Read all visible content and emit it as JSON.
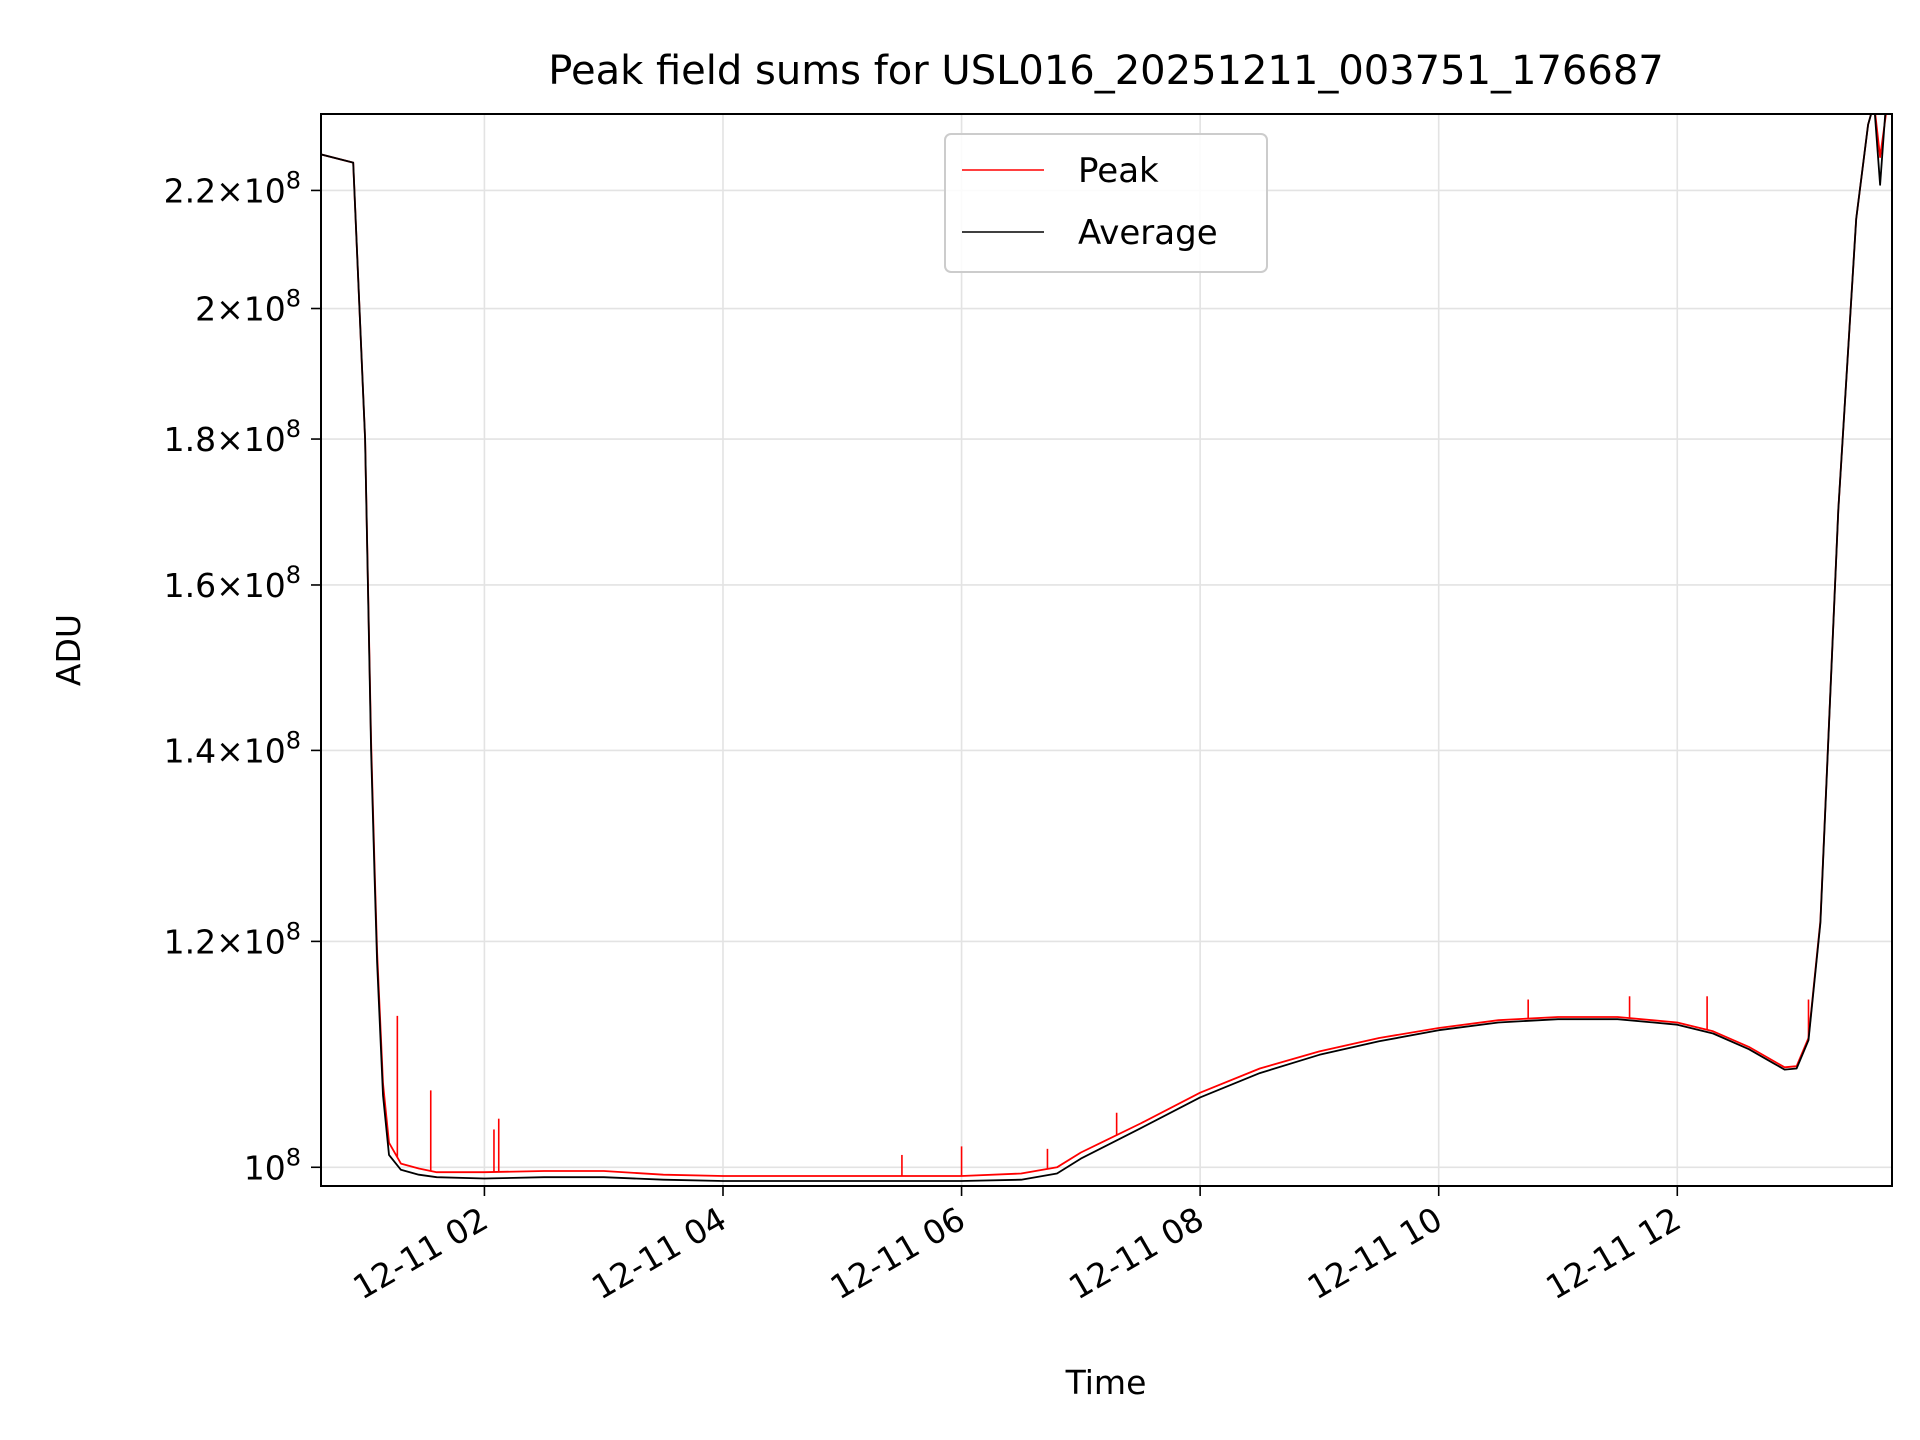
{
  "chart_data": {
    "type": "line",
    "title": "Peak field sums for USL016_20251211_003751_176687",
    "xlabel": "Time",
    "ylabel": "ADU",
    "x_unit": "hours (2025-12-11)",
    "x_range": [
      0.63,
      13.8
    ],
    "y_scale": "log",
    "ylim": [
      98500000,
      234000000
    ],
    "grid": true,
    "legend_position": "upper center",
    "x_ticks": [
      {
        "value": 2,
        "label": "12-11 02"
      },
      {
        "value": 4,
        "label": "12-11 04"
      },
      {
        "value": 6,
        "label": "12-11 06"
      },
      {
        "value": 8,
        "label": "12-11 08"
      },
      {
        "value": 10,
        "label": "12-11 10"
      },
      {
        "value": 12,
        "label": "12-11 12"
      }
    ],
    "y_ticks": [
      {
        "value": 100000000,
        "mantissa": "",
        "exp": "8"
      },
      {
        "value": 120000000,
        "mantissa": "1.2",
        "exp": "8"
      },
      {
        "value": 140000000,
        "mantissa": "1.4",
        "exp": "8"
      },
      {
        "value": 160000000,
        "mantissa": "1.6",
        "exp": "8"
      },
      {
        "value": 180000000,
        "mantissa": "1.8",
        "exp": "8"
      },
      {
        "value": 200000000,
        "mantissa": "2",
        "exp": "8"
      },
      {
        "value": 220000000,
        "mantissa": "2.2",
        "exp": "8"
      }
    ],
    "series": [
      {
        "name": "Peak",
        "color": "#ff0000",
        "x": [
          0.63,
          0.9,
          1.0,
          1.05,
          1.08,
          1.1,
          1.15,
          1.2,
          1.3,
          1.45,
          1.6,
          2.0,
          2.5,
          3.0,
          3.5,
          4.0,
          4.5,
          5.0,
          5.5,
          6.0,
          6.5,
          6.8,
          7.0,
          7.5,
          8.0,
          8.5,
          9.0,
          9.5,
          10.0,
          10.5,
          11.0,
          11.5,
          12.0,
          12.3,
          12.6,
          12.8,
          12.9,
          13.0,
          13.1,
          13.2,
          13.35,
          13.5,
          13.6,
          13.65,
          13.7,
          13.75,
          13.8
        ],
        "y": [
          226500000,
          225000000,
          180000000,
          141000000,
          127000000,
          119000000,
          107000000,
          102000000,
          100300000,
          99900000,
          99600000,
          99600000,
          99700000,
          99700000,
          99400000,
          99300000,
          99300000,
          99300000,
          99300000,
          99300000,
          99500000,
          100000000,
          101200000,
          103600000,
          106200000,
          108300000,
          109800000,
          111000000,
          111900000,
          112600000,
          112900000,
          112900000,
          112400000,
          111600000,
          110200000,
          109000000,
          108400000,
          108500000,
          111000000,
          122000000,
          170000000,
          215000000,
          232000000,
          236000000,
          226000000,
          234000000,
          236000000
        ],
        "spikes": [
          {
            "x": 1.05,
            "y": 141000000
          },
          {
            "x": 1.27,
            "y": 113000000
          },
          {
            "x": 1.55,
            "y": 106400000
          },
          {
            "x": 2.08,
            "y": 103100000
          },
          {
            "x": 2.12,
            "y": 104000000
          },
          {
            "x": 5.5,
            "y": 101000000
          },
          {
            "x": 6.0,
            "y": 101700000
          },
          {
            "x": 6.72,
            "y": 101500000
          },
          {
            "x": 7.3,
            "y": 104500000
          },
          {
            "x": 10.75,
            "y": 114500000
          },
          {
            "x": 11.6,
            "y": 114800000
          },
          {
            "x": 12.25,
            "y": 114800000
          },
          {
            "x": 13.1,
            "y": 114500000
          }
        ]
      },
      {
        "name": "Average",
        "color": "#000000",
        "x": [
          0.63,
          0.9,
          1.0,
          1.05,
          1.08,
          1.1,
          1.15,
          1.2,
          1.3,
          1.45,
          1.6,
          2.0,
          2.5,
          3.0,
          3.5,
          4.0,
          4.5,
          5.0,
          5.5,
          6.0,
          6.5,
          6.8,
          7.0,
          7.5,
          8.0,
          8.5,
          9.0,
          9.5,
          10.0,
          10.5,
          11.0,
          11.5,
          12.0,
          12.3,
          12.6,
          12.8,
          12.9,
          13.0,
          13.1,
          13.2,
          13.35,
          13.5,
          13.6,
          13.65,
          13.7,
          13.75,
          13.8
        ],
        "y": [
          226500000,
          225000000,
          180000000,
          140000000,
          126000000,
          118000000,
          106000000,
          101000000,
          99800000,
          99400000,
          99200000,
          99100000,
          99200000,
          99200000,
          99000000,
          98900000,
          98900000,
          98900000,
          98900000,
          98900000,
          99000000,
          99500000,
          100700000,
          103200000,
          105800000,
          107900000,
          109500000,
          110700000,
          111700000,
          112400000,
          112700000,
          112700000,
          112200000,
          111400000,
          110000000,
          108800000,
          108200000,
          108300000,
          110800000,
          121800000,
          170000000,
          215000000,
          232000000,
          236000000,
          221000000,
          236000000,
          236000000
        ]
      }
    ]
  }
}
